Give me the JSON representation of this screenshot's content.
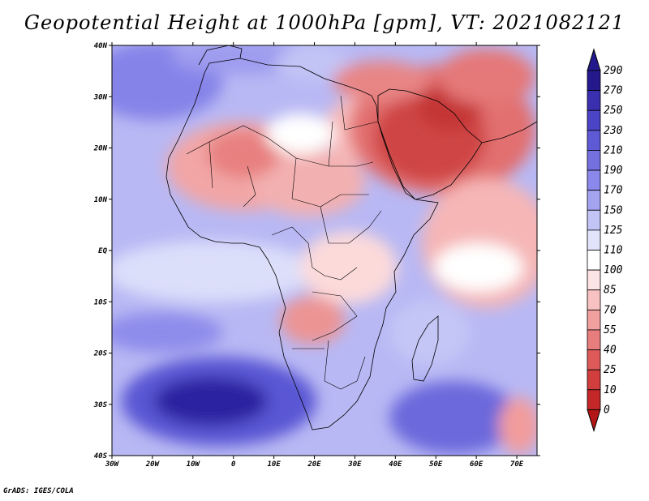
{
  "title": "Geopotential Height at 1000hPa [gpm], VT: 2021082121",
  "credit": "GrADS: IGES/COLA",
  "map": {
    "lon_ticks": [
      "30W",
      "20W",
      "10W",
      "0",
      "10E",
      "20E",
      "30E",
      "40E",
      "50E",
      "60E",
      "70E"
    ],
    "lat_ticks": [
      "40N",
      "30N",
      "20N",
      "10N",
      "EQ",
      "10S",
      "20S",
      "30S",
      "40S"
    ]
  },
  "colorbar": {
    "levels": [
      "290",
      "270",
      "250",
      "230",
      "210",
      "190",
      "170",
      "150",
      "125",
      "110",
      "100",
      "85",
      "70",
      "55",
      "40",
      "25",
      "10",
      "0"
    ],
    "colors": [
      "#24198c",
      "#3a2fae",
      "#4b44c6",
      "#5e5ad6",
      "#7470e0",
      "#8a88ea",
      "#a3a3f0",
      "#c3c4f6",
      "#e2e4fb",
      "#ffffff",
      "#fde4e4",
      "#f9c2c2",
      "#f1a0a0",
      "#e87d7d",
      "#de5a5a",
      "#d23d3d",
      "#c42727",
      "#b21616"
    ]
  }
}
